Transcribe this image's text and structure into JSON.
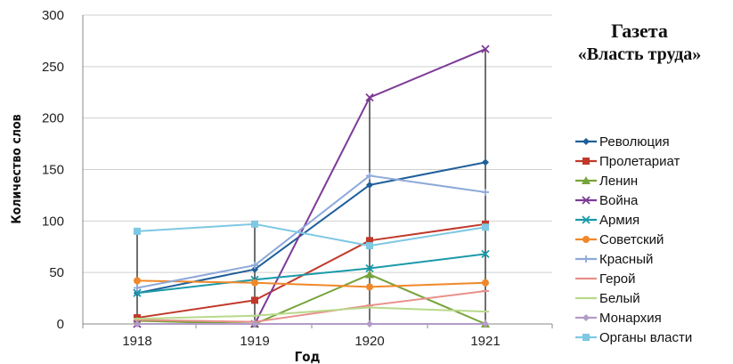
{
  "chart_data": {
    "type": "line",
    "title_line1": "Газета",
    "title_line2": "«Власть труда»",
    "xlabel": "Год",
    "ylabel": "Количество слов",
    "categories": [
      "1918",
      "1919",
      "1920",
      "1921"
    ],
    "ylim": [
      0,
      300
    ],
    "yticks": [
      "0",
      "50",
      "100",
      "150",
      "200",
      "250",
      "300"
    ],
    "grid": true,
    "legend_position": "right",
    "series": [
      {
        "name": "Революция",
        "color": "#1F5F99",
        "marker": "diamond",
        "values": [
          30,
          53,
          135,
          157
        ]
      },
      {
        "name": "Пролетариат",
        "color": "#C0392B",
        "marker": "square",
        "values": [
          6,
          23,
          81,
          97
        ]
      },
      {
        "name": "Ленин",
        "color": "#77A33A",
        "marker": "triangle",
        "values": [
          3,
          0,
          48,
          0
        ]
      },
      {
        "name": "Война",
        "color": "#7D3C98",
        "marker": "x",
        "values": [
          0,
          0,
          220,
          267
        ]
      },
      {
        "name": "Армия",
        "color": "#1B9AAA",
        "marker": "x",
        "values": [
          30,
          43,
          54,
          68
        ]
      },
      {
        "name": "Советский",
        "color": "#F0882A",
        "marker": "circle",
        "values": [
          42,
          40,
          36,
          40
        ]
      },
      {
        "name": "Красный",
        "color": "#8EA9D8",
        "marker": "plus",
        "values": [
          35,
          57,
          144,
          128
        ]
      },
      {
        "name": "Герой",
        "color": "#E8908A",
        "marker": "dash",
        "values": [
          4,
          2,
          18,
          32
        ]
      },
      {
        "name": "Белый",
        "color": "#B8D98A",
        "marker": "dash",
        "values": [
          5,
          8,
          16,
          12
        ]
      },
      {
        "name": "Монархия",
        "color": "#B39BC8",
        "marker": "diamond",
        "values": [
          0,
          0,
          0,
          0
        ]
      },
      {
        "name": "Органы власти",
        "color": "#7EC8E3",
        "marker": "square",
        "values": [
          90,
          97,
          76,
          94
        ]
      }
    ]
  }
}
